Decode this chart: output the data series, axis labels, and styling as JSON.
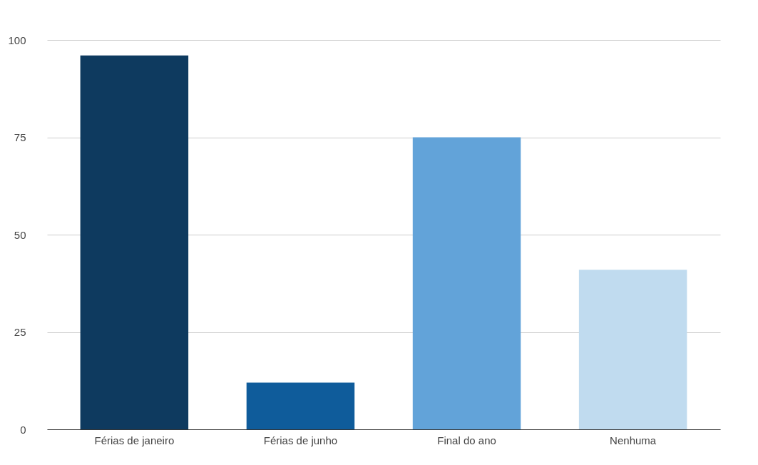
{
  "chart_data": {
    "type": "bar",
    "categories": [
      "Férias de janeiro",
      "Férias de junho",
      "Final do ano",
      "Nenhuma"
    ],
    "values": [
      96,
      12,
      75,
      41
    ],
    "colors": [
      "#0e3a5f",
      "#0f5c9b",
      "#62a3d9",
      "#c0dbef"
    ],
    "ylim": [
      0,
      100
    ],
    "yticks": [
      0,
      25,
      50,
      75,
      100
    ],
    "grid": "y",
    "legend": false
  }
}
